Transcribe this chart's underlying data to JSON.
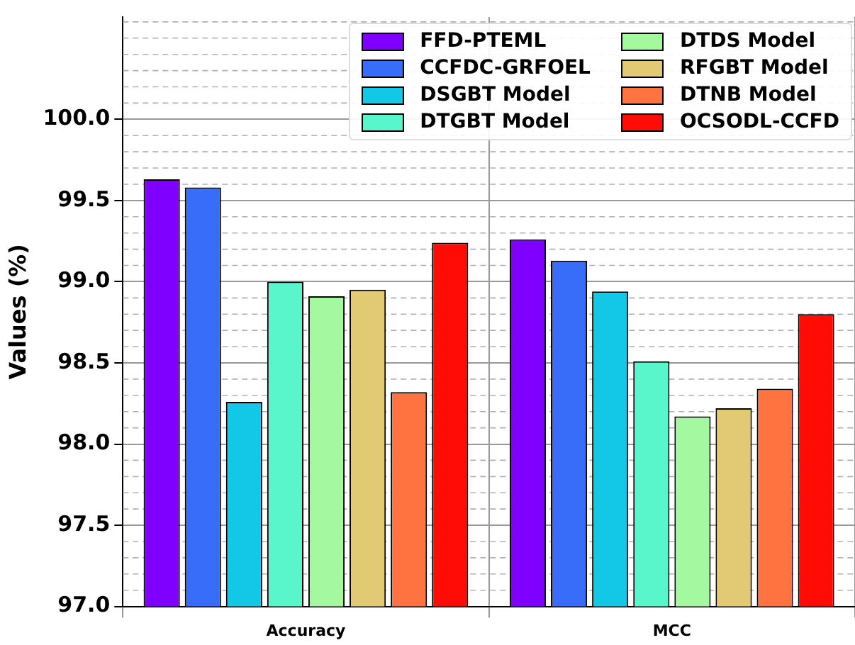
{
  "chart_data": {
    "type": "bar",
    "ylabel": "Values (%)",
    "categories": [
      "Accuracy",
      "MCC"
    ],
    "series": [
      {
        "name": "FFD-PTEML",
        "color": "#8000ff",
        "values": [
          99.63,
          99.26
        ]
      },
      {
        "name": "CCFDC-GRFOEL",
        "color": "#386df9",
        "values": [
          99.58,
          99.13
        ]
      },
      {
        "name": "DSGBT Model",
        "color": "#12c8e6",
        "values": [
          98.26,
          98.94
        ]
      },
      {
        "name": "DTGBT Model",
        "color": "#59f6cb",
        "values": [
          99.0,
          98.51
        ]
      },
      {
        "name": "DTDS Model",
        "color": "#a4f89f",
        "values": [
          98.91,
          98.17
        ]
      },
      {
        "name": "RFGBT Model",
        "color": "#e2c973",
        "values": [
          98.95,
          98.22
        ]
      },
      {
        "name": "DTNB Model",
        "color": "#ff7340",
        "values": [
          98.32,
          98.34
        ]
      },
      {
        "name": "OCSODL-CCFD",
        "color": "#ff0c06",
        "values": [
          99.24,
          98.8
        ]
      }
    ],
    "ylim": [
      97,
      100.63
    ],
    "yticks": [
      {
        "value": 97,
        "label": "97.0"
      },
      {
        "value": 97.5,
        "label": "97.5"
      },
      {
        "value": 98,
        "label": "98.0"
      },
      {
        "value": 98.5,
        "label": "98.5"
      },
      {
        "value": 99,
        "label": "99.0"
      },
      {
        "value": 99.5,
        "label": "99.5"
      },
      {
        "value": 100,
        "label": "100.0"
      }
    ],
    "grid": true,
    "legend": "top right"
  }
}
